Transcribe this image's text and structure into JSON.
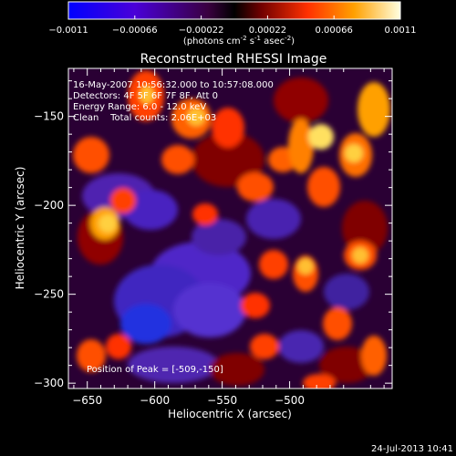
{
  "chart_data": {
    "type": "heatmap",
    "title": "Reconstructed RHESSI Image",
    "xlabel": "Heliocentric X (arcsec)",
    "ylabel": "Heliocentric Y (arcsec)",
    "xlim": [
      -664,
      -424
    ],
    "ylim": [
      -303,
      -123
    ],
    "x_ticks": [
      -650,
      -600,
      -550,
      -500
    ],
    "y_ticks": [
      -300,
      -250,
      -200,
      -150
    ],
    "colorbar": {
      "range": [
        -0.0011,
        0.0011
      ],
      "tick_labels": [
        "-0.0011",
        "-0.00066",
        "-0.00022",
        "0.00022",
        "0.00066",
        "0.0011"
      ],
      "unit_main": "(photons cm",
      "unit_exp1": "-2",
      "unit_mid": " s",
      "unit_exp2": "-1",
      "unit_end": " asec",
      "unit_exp3": "-2",
      "unit_close": ")"
    },
    "annotations": {
      "line1": "16-May-2007 10:56:32.000 to 10:57:08.000",
      "line2": "Detectors: 4F 5F 6F 7F 8F, Att 0",
      "line3": "Energy Range: 6.0 - 12.0 keV",
      "line4": "Clean    Total counts: 2.06E+03",
      "peak": "Position of Peak = [-509,-150]"
    },
    "peak_position": [
      -509,
      -150
    ],
    "timestamp": "24-Jul-2013 10:41"
  }
}
